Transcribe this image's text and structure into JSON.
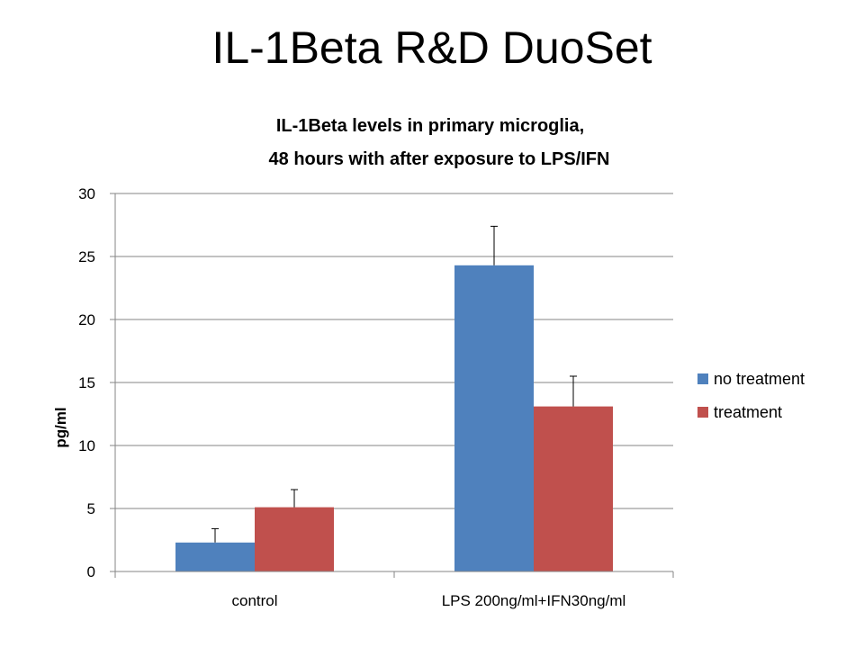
{
  "slide": {
    "title": "IL-1Beta R&D DuoSet"
  },
  "chart_data": {
    "type": "bar",
    "title_lines": [
      "IL-1Beta levels in primary microglia,",
      "48 hours with after exposure to LPS/IFN"
    ],
    "categories": [
      "control",
      "LPS 200ng/ml+IFN30ng/ml"
    ],
    "series": [
      {
        "name": "no treatment",
        "color": "#4F81BD",
        "values": [
          2.3,
          24.3
        ],
        "errors": [
          1.1,
          3.1
        ]
      },
      {
        "name": "treatment",
        "color": "#C0504D",
        "values": [
          5.1,
          13.1
        ],
        "errors": [
          1.4,
          2.4
        ]
      }
    ],
    "ylabel": "pg/ml",
    "xlabel": "",
    "ylim": [
      0,
      30
    ],
    "yticks": [
      0,
      5,
      10,
      15,
      20,
      25,
      30
    ],
    "grid": true,
    "legend_position": "right"
  }
}
